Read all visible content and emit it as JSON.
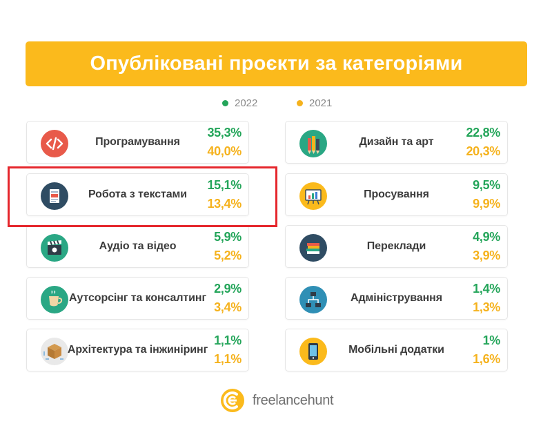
{
  "title": "Опубліковані проєкти за категоріями",
  "legend": [
    {
      "label": "2022",
      "color": "#24a55a"
    },
    {
      "label": "2021",
      "color": "#f5b21d"
    }
  ],
  "chart_data": {
    "type": "table",
    "title": "Опубліковані проєкти за категоріями",
    "series_names": [
      "2022",
      "2021"
    ],
    "rows": [
      {
        "category": "Програмування",
        "icon": "code-icon",
        "v2022": "35,3%",
        "v2021": "40,0%"
      },
      {
        "category": "Дизайн та арт",
        "icon": "pencils-icon",
        "v2022": "22,8%",
        "v2021": "20,3%"
      },
      {
        "category": "Робота з текстами",
        "icon": "document-icon",
        "v2022": "15,1%",
        "v2021": "13,4%"
      },
      {
        "category": "Просування",
        "icon": "presentation-board-icon",
        "v2022": "9,5%",
        "v2021": "9,9%"
      },
      {
        "category": "Аудіо та відео",
        "icon": "clapperboard-icon",
        "v2022": "5,9%",
        "v2021": "5,2%"
      },
      {
        "category": "Переклади",
        "icon": "books-icon",
        "v2022": "4,9%",
        "v2021": "3,9%"
      },
      {
        "category": "Аутсорсінг та консалтинг",
        "icon": "coffee-cup-icon",
        "v2022": "2,9%",
        "v2021": "3,4%"
      },
      {
        "category": "Адміністрування",
        "icon": "network-icon",
        "v2022": "1,4%",
        "v2021": "1,3%"
      },
      {
        "category": "Архітектура та інжиніринг",
        "icon": "box-icon",
        "v2022": "1,1%",
        "v2021": "1,1%"
      },
      {
        "category": "Мобільні додатки",
        "icon": "mobile-phone-icon",
        "v2022": "1%",
        "v2021": "1,6%"
      }
    ]
  },
  "colors": {
    "accent": "#fbba1c",
    "green": "#24a55a",
    "yellow": "#f5b21d",
    "highlight": "#e5262c"
  },
  "footer": {
    "brand": "freelancehunt",
    "logo_icon": "freelancehunt-logo-icon"
  }
}
